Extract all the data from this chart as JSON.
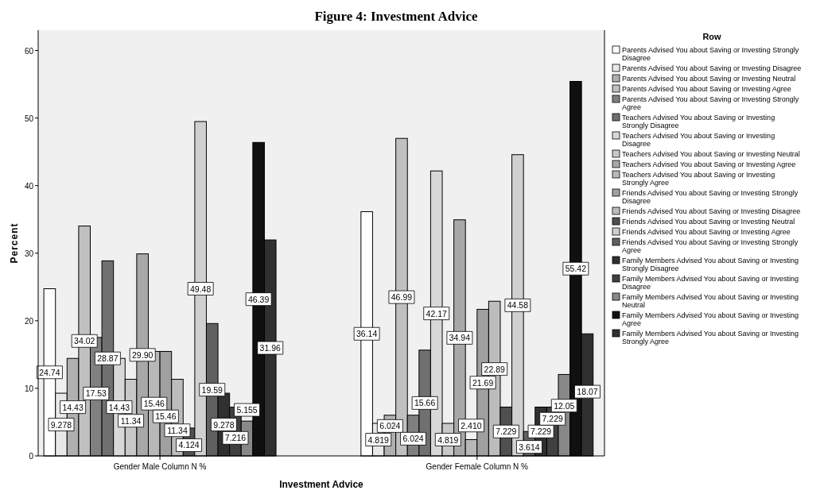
{
  "chart_data": {
    "type": "bar",
    "title": "Figure 4: Investment Advice",
    "xlabel": "Investment Advice",
    "ylabel": "Percent",
    "legend_title": "Row",
    "legend": "right",
    "categories": [
      "Gender Male Column N %",
      "Gender Female Column N %"
    ],
    "ylim": [
      0,
      63
    ],
    "yticks": [
      0,
      10,
      20,
      30,
      40,
      50,
      60
    ],
    "series": [
      {
        "name": "Parents Advised You about Saving or Investing Strongly Disagree",
        "color": "#ffffff",
        "values": [
          24.74,
          36.14
        ],
        "value_labels": [
          "24.74",
          "36.14"
        ]
      },
      {
        "name": "Parents Advised You about Saving or Investing Disagree",
        "color": "#e8e8e8",
        "values": [
          9.278,
          4.819
        ],
        "value_labels": [
          "9.278",
          "4.819"
        ]
      },
      {
        "name": "Parents Advised You about Saving or Investing Neutral",
        "color": "#b0b0b0",
        "values": [
          14.43,
          6.024
        ],
        "value_labels": [
          "14.43",
          "6.024"
        ]
      },
      {
        "name": "Parents Advised You about Saving or Investing Agree",
        "color": "#c0c0c0",
        "values": [
          34.02,
          46.99
        ],
        "value_labels": [
          "34.02",
          "46.99"
        ]
      },
      {
        "name": "Parents Advised You about Saving or Investing Strongly Agree",
        "color": "#808080",
        "values": [
          17.53,
          6.024
        ],
        "value_labels": [
          "17.53",
          "6.024"
        ]
      },
      {
        "name": "Teachers Advised You about Saving or Investing Strongly Disagree",
        "color": "#707070",
        "values": [
          28.87,
          15.66
        ],
        "value_labels": [
          "28.87",
          "15.66"
        ]
      },
      {
        "name": "Teachers Advised You about Saving or Investing Disagree",
        "color": "#d8d8d8",
        "values": [
          14.43,
          42.17
        ],
        "value_labels": [
          "14.43",
          "42.17"
        ]
      },
      {
        "name": "Teachers Advised You about Saving or Investing Neutral",
        "color": "#c8c8c8",
        "values": [
          11.34,
          4.819
        ],
        "value_labels": [
          "11.34",
          "4.819"
        ]
      },
      {
        "name": "Teachers Advised You about Saving or Investing Agree",
        "color": "#a8a8a8",
        "values": [
          29.9,
          34.94
        ],
        "value_labels": [
          "29.90",
          "34.94"
        ]
      },
      {
        "name": "Teachers Advised You about Saving or Investing Strongly Agree",
        "color": "#b8b8b8",
        "values": [
          15.46,
          2.41
        ],
        "value_labels": [
          "15.46",
          "2.410"
        ]
      },
      {
        "name": "Friends Advised You about Saving or Investing Strongly Disagree",
        "color": "#a0a0a0",
        "values": [
          15.46,
          21.69
        ],
        "value_labels": [
          "15.46",
          "21.69"
        ]
      },
      {
        "name": "Friends Advised You about Saving or Investing Disagree",
        "color": "#bcbcbc",
        "values": [
          11.34,
          22.89
        ],
        "value_labels": [
          "11.34",
          "22.89"
        ]
      },
      {
        "name": "Friends Advised You about Saving or Investing Neutral",
        "color": "#505050",
        "values": [
          4.124,
          7.229
        ],
        "value_labels": [
          "4.124",
          "7.229"
        ]
      },
      {
        "name": "Friends Advised You about Saving or Investing Agree",
        "color": "#d0d0d0",
        "values": [
          49.48,
          44.58
        ],
        "value_labels": [
          "49.48",
          "44.58"
        ]
      },
      {
        "name": "Friends Advised You about Saving or Investing Strongly Agree",
        "color": "#606060",
        "values": [
          19.59,
          3.614
        ],
        "value_labels": [
          "19.59",
          "3.614"
        ]
      },
      {
        "name": "Family Members Advised You about Saving or Investing Strongly Disagree",
        "color": "#303030",
        "values": [
          9.278,
          7.229
        ],
        "value_labels": [
          "9.278",
          "7.229"
        ]
      },
      {
        "name": "Family Members Advised You about Saving or Investing Disagree",
        "color": "#404040",
        "values": [
          7.216,
          7.229
        ],
        "value_labels": [
          "7.216",
          "7.229"
        ]
      },
      {
        "name": "Family Members Advised You about Saving or Investing Neutral",
        "color": "#888888",
        "values": [
          5.155,
          12.05
        ],
        "value_labels": [
          "5.155",
          "12.05"
        ]
      },
      {
        "name": "Family Members Advised You about Saving or Investing Agree",
        "color": "#101010",
        "values": [
          46.39,
          55.42
        ],
        "value_labels": [
          "46.39",
          "55.42"
        ]
      },
      {
        "name": "Family Members Advised You about Saving or Investing Strongly Agree",
        "color": "#303030",
        "values": [
          31.96,
          18.07
        ],
        "value_labels": [
          "31.96",
          "18.07"
        ]
      }
    ]
  }
}
